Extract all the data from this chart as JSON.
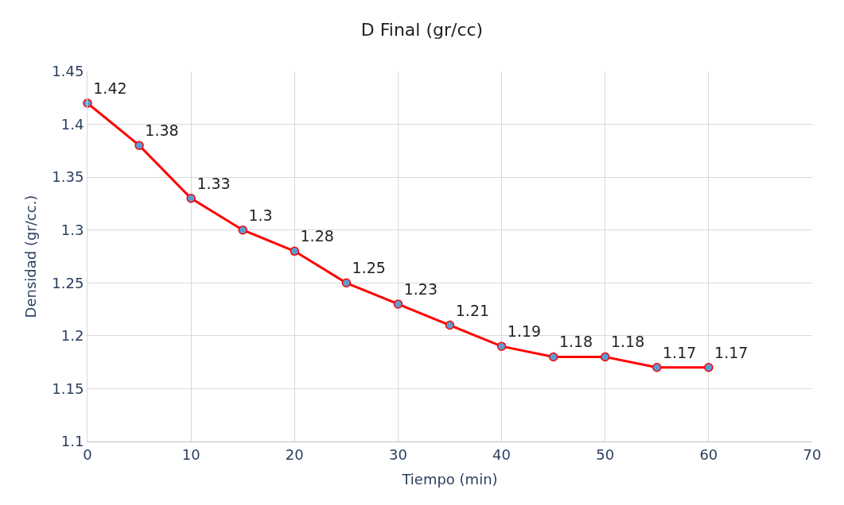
{
  "chart_data": {
    "type": "line",
    "title": "D Final (gr/cc)",
    "xlabel": "Tiempo (min)",
    "ylabel": "Densidad (gr/cc.)",
    "x": [
      0,
      5,
      10,
      15,
      20,
      25,
      30,
      35,
      40,
      45,
      50,
      55,
      60
    ],
    "series": [
      {
        "color": "#ff0000",
        "values": [
          1.42,
          1.38,
          1.33,
          1.3,
          1.28,
          1.25,
          1.23,
          1.21,
          1.19,
          1.18,
          1.18,
          1.17,
          1.17
        ]
      }
    ],
    "xlim": [
      0,
      70
    ],
    "xticks": [
      0,
      10,
      20,
      30,
      40,
      50,
      60,
      70
    ],
    "ylim": [
      1.1,
      1.45
    ],
    "yticks": [
      1.1,
      1.15,
      1.2,
      1.25,
      1.3,
      1.35,
      1.4,
      1.45
    ],
    "grid": true,
    "marker": "circle",
    "line_style": "solid",
    "data_labels": true
  }
}
